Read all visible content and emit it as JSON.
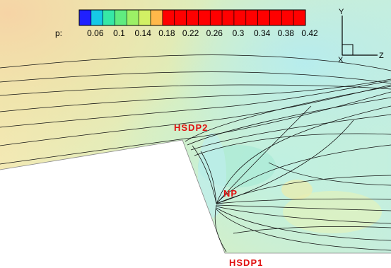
{
  "colorbar": {
    "variable": "p:",
    "tick_labels": [
      "0.06",
      "0.1",
      "0.14",
      "0.18",
      "0.22",
      "0.26",
      "0.3",
      "0.34",
      "0.38",
      "0.42"
    ],
    "colors": [
      "#2020ff",
      "#16c8e6",
      "#36e8a6",
      "#60ec80",
      "#9cf066",
      "#d2f064",
      "#ffb84a",
      "#ff0000",
      "#ff0000",
      "#ff0000",
      "#ff0000",
      "#ff0000",
      "#ff0000",
      "#ff0000",
      "#ff0000",
      "#ff0000",
      "#ff0000",
      "#ff0000",
      "#ff0000"
    ]
  },
  "axes_triad": {
    "y_label": "Y",
    "z_label": "Z",
    "x_label": "X"
  },
  "points": {
    "hsdp2": "HSDP2",
    "np": "NP",
    "hsdp1": "HSDP1",
    "label_color": "#e01010"
  }
}
